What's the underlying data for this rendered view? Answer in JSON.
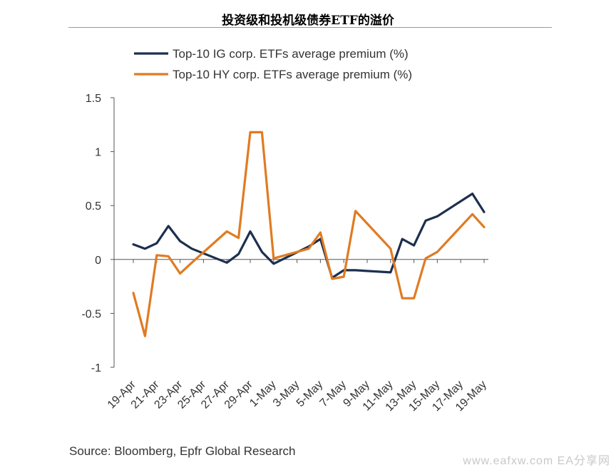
{
  "title": "投资级和投机级债券ETF的溢价",
  "source": "Source: Bloomberg, Epfr Global Research",
  "watermark": "www.eafxw.com  EA分享网",
  "chart_data": {
    "type": "line",
    "title": "投资级和投机级债券ETF的溢价",
    "xlabel": "",
    "ylabel": "",
    "ylim": [
      -1,
      1.5
    ],
    "yticks": [
      "1.5",
      "1",
      "0.5",
      "0",
      "-0.5",
      "-1"
    ],
    "ytick_values": [
      1.5,
      1,
      0.5,
      0,
      -0.5,
      -1
    ],
    "x": [
      "19-Apr",
      "20-Apr",
      "21-Apr",
      "22-Apr",
      "23-Apr",
      "24-Apr",
      "25-Apr",
      "26-Apr",
      "27-Apr",
      "28-Apr",
      "29-Apr",
      "30-Apr",
      "1-May",
      "2-May",
      "3-May",
      "4-May",
      "5-May",
      "6-May",
      "7-May",
      "8-May",
      "9-May",
      "10-May",
      "11-May",
      "12-May",
      "13-May",
      "14-May",
      "15-May",
      "16-May",
      "17-May",
      "18-May",
      "19-May"
    ],
    "xtick_labels": [
      "19-Apr",
      "21-Apr",
      "23-Apr",
      "25-Apr",
      "27-Apr",
      "29-Apr",
      "1-May",
      "3-May",
      "5-May",
      "7-May",
      "9-May",
      "11-May",
      "13-May",
      "15-May",
      "17-May",
      "19-May"
    ],
    "legend_position": "top-left",
    "grid": false,
    "series": [
      {
        "name": "Top-10 IG corp. ETFs average premium (%)",
        "color": "#1c2f4f",
        "points": [
          [
            "19-Apr",
            0.14
          ],
          [
            "20-Apr",
            0.1
          ],
          [
            "21-Apr",
            0.15
          ],
          [
            "22-Apr",
            0.31
          ],
          [
            "23-Apr",
            0.17
          ],
          [
            "24-Apr",
            0.1
          ],
          [
            "27-Apr",
            -0.03
          ],
          [
            "28-Apr",
            0.05
          ],
          [
            "29-Apr",
            0.26
          ],
          [
            "30-Apr",
            0.07
          ],
          [
            "1-May",
            -0.04
          ],
          [
            "4-May",
            0.12
          ],
          [
            "5-May",
            0.19
          ],
          [
            "6-May",
            -0.17
          ],
          [
            "7-May",
            -0.1
          ],
          [
            "8-May",
            -0.1
          ],
          [
            "11-May",
            -0.12
          ],
          [
            "12-May",
            0.19
          ],
          [
            "13-May",
            0.13
          ],
          [
            "14-May",
            0.36
          ],
          [
            "15-May",
            0.4
          ],
          [
            "18-May",
            0.61
          ],
          [
            "19-May",
            0.44
          ]
        ]
      },
      {
        "name": "Top-10 HY corp. ETFs average premium (%)",
        "color": "#e07b22",
        "points": [
          [
            "19-Apr",
            -0.31
          ],
          [
            "20-Apr",
            -0.71
          ],
          [
            "21-Apr",
            0.04
          ],
          [
            "22-Apr",
            0.03
          ],
          [
            "23-Apr",
            -0.13
          ],
          [
            "24-Apr",
            -0.03
          ],
          [
            "27-Apr",
            0.26
          ],
          [
            "28-Apr",
            0.2
          ],
          [
            "29-Apr",
            1.18
          ],
          [
            "30-Apr",
            1.18
          ],
          [
            "1-May",
            0.01
          ],
          [
            "4-May",
            0.1
          ],
          [
            "5-May",
            0.25
          ],
          [
            "6-May",
            -0.18
          ],
          [
            "7-May",
            -0.16
          ],
          [
            "8-May",
            0.45
          ],
          [
            "11-May",
            0.1
          ],
          [
            "12-May",
            -0.36
          ],
          [
            "13-May",
            -0.36
          ],
          [
            "14-May",
            0.01
          ],
          [
            "15-May",
            0.07
          ],
          [
            "18-May",
            0.42
          ],
          [
            "19-May",
            0.3
          ]
        ]
      }
    ]
  }
}
